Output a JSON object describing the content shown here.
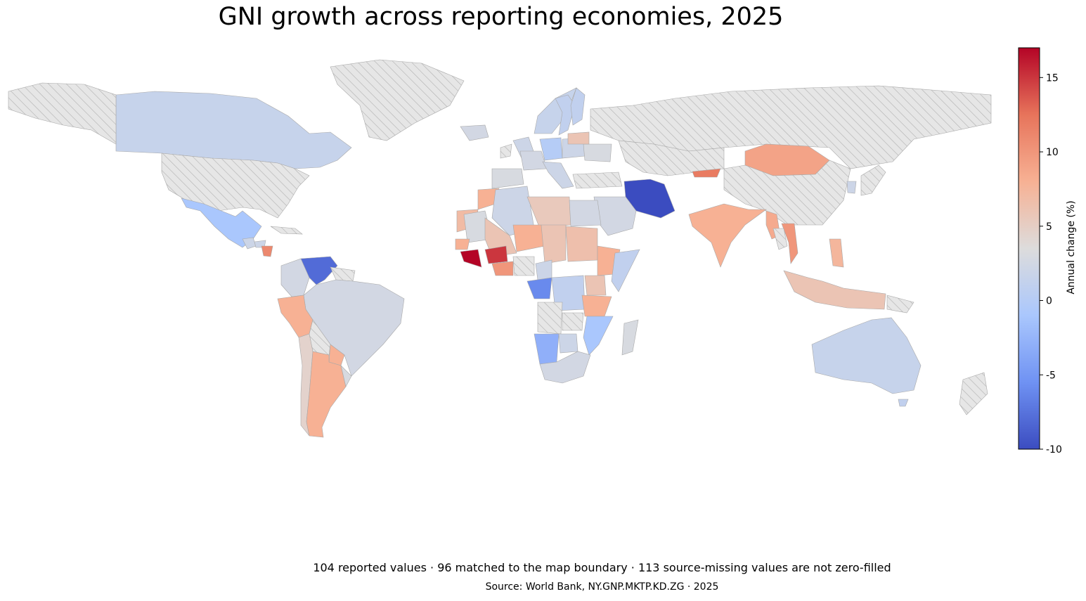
{
  "title": "GNI growth across reporting economies, 2025",
  "footnote": "104 reported values · 96 matched to the map boundary · 113 source-missing values are not zero-filled",
  "source": "Source: World Bank, NY.GNP.MKTP.KD.ZG · 2025",
  "colorbar": {
    "label": "Annual change (%)",
    "min": -10,
    "max": 17,
    "ticks": [
      -10,
      -5,
      0,
      5,
      10,
      15
    ],
    "colormap": "coolwarm",
    "stops": [
      "#3b4cc0",
      "#6f92f3",
      "#aac7fd",
      "#dddcdc",
      "#f7b194",
      "#e7745b",
      "#b40426"
    ]
  },
  "missing_style": {
    "fill": "#e6e6e6",
    "hatch": "diagonal"
  },
  "chart_data": {
    "type": "choropleth",
    "indicator": "NY.GNP.MKTP.KD.ZG",
    "year": 2025,
    "units": "Annual change (%)",
    "regions": [
      {
        "id": "canada",
        "value": 1.5
      },
      {
        "id": "usa",
        "value": null
      },
      {
        "id": "alaska",
        "value": null
      },
      {
        "id": "greenland",
        "value": null
      },
      {
        "id": "mexico",
        "value": -1
      },
      {
        "id": "guatemala",
        "value": 2
      },
      {
        "id": "honduras",
        "value": 2
      },
      {
        "id": "nicaragua",
        "value": 11
      },
      {
        "id": "cuba",
        "value": null
      },
      {
        "id": "venezuela",
        "value": -8
      },
      {
        "id": "colombia",
        "value": 2.5
      },
      {
        "id": "guyana",
        "value": null
      },
      {
        "id": "brazil",
        "value": 2.5
      },
      {
        "id": "peru",
        "value": 8
      },
      {
        "id": "bolivia",
        "value": null
      },
      {
        "id": "paraguay",
        "value": 8
      },
      {
        "id": "chile",
        "value": 4.5
      },
      {
        "id": "argentina",
        "value": 8
      },
      {
        "id": "uruguay",
        "value": 3
      },
      {
        "id": "iceland",
        "value": 2.5
      },
      {
        "id": "norway",
        "value": 1.5
      },
      {
        "id": "sweden",
        "value": 1
      },
      {
        "id": "finland",
        "value": 1
      },
      {
        "id": "uk",
        "value": 2
      },
      {
        "id": "ireland",
        "value": null
      },
      {
        "id": "spain",
        "value": 3
      },
      {
        "id": "france",
        "value": 2.5
      },
      {
        "id": "germany",
        "value": 0
      },
      {
        "id": "poland",
        "value": 2
      },
      {
        "id": "italy",
        "value": 2
      },
      {
        "id": "ukraine",
        "value": 3
      },
      {
        "id": "belarus",
        "value": 6
      },
      {
        "id": "turkey",
        "value": null
      },
      {
        "id": "russia",
        "value": null
      },
      {
        "id": "kazakhstan",
        "value": null
      },
      {
        "id": "kyrgyzstan",
        "value": 12
      },
      {
        "id": "mongolia",
        "value": 9
      },
      {
        "id": "china",
        "value": null
      },
      {
        "id": "iran",
        "value": -10
      },
      {
        "id": "saudi",
        "value": 2.5
      },
      {
        "id": "india",
        "value": 8
      },
      {
        "id": "myanmar",
        "value": 8.5
      },
      {
        "id": "vietnam",
        "value": 10
      },
      {
        "id": "laos",
        "value": null
      },
      {
        "id": "japan",
        "value": null
      },
      {
        "id": "korea",
        "value": 2
      },
      {
        "id": "philippines",
        "value": 7.5
      },
      {
        "id": "indonesia",
        "value": 6
      },
      {
        "id": "png",
        "value": null
      },
      {
        "id": "australia",
        "value": 1.5
      },
      {
        "id": "nz",
        "value": null
      },
      {
        "id": "tasmania",
        "value": 1
      },
      {
        "id": "madagascar",
        "value": 3
      },
      {
        "id": "morocco",
        "value": 8
      },
      {
        "id": "western_sahara",
        "value": 7
      },
      {
        "id": "mauritania",
        "value": 3
      },
      {
        "id": "algeria",
        "value": 2
      },
      {
        "id": "libya",
        "value": 5.5
      },
      {
        "id": "egypt",
        "value": 2.5
      },
      {
        "id": "mali",
        "value": 6
      },
      {
        "id": "niger",
        "value": 8
      },
      {
        "id": "chad",
        "value": 6
      },
      {
        "id": "sudan",
        "value": 6.5
      },
      {
        "id": "ethiopia",
        "value": 8
      },
      {
        "id": "somalia",
        "value": 1
      },
      {
        "id": "senegal",
        "value": 8
      },
      {
        "id": "guinea",
        "value": 17
      },
      {
        "id": "burkina",
        "value": 15
      },
      {
        "id": "ghana",
        "value": 10
      },
      {
        "id": "nigeria",
        "value": null
      },
      {
        "id": "cameroon",
        "value": 2
      },
      {
        "id": "gabon",
        "value": -6
      },
      {
        "id": "drc",
        "value": 1
      },
      {
        "id": "kenya",
        "value": 6
      },
      {
        "id": "tanzania",
        "value": 8
      },
      {
        "id": "angola",
        "value": null
      },
      {
        "id": "zambia",
        "value": null
      },
      {
        "id": "namibia",
        "value": -3
      },
      {
        "id": "botswana",
        "value": 2
      },
      {
        "id": "mozambique",
        "value": -1
      },
      {
        "id": "south_africa",
        "value": 2.5
      }
    ]
  }
}
